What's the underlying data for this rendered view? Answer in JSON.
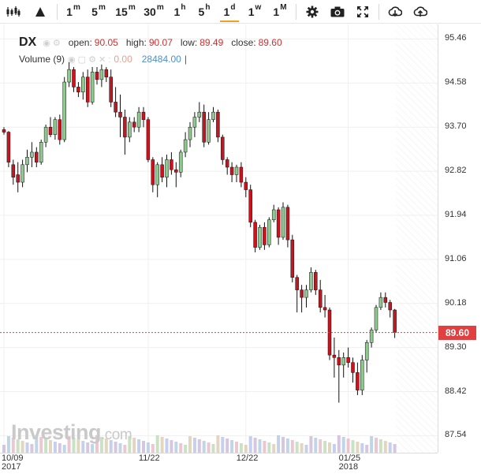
{
  "toolbar": {
    "intervals": [
      {
        "main": "1",
        "sup": "m"
      },
      {
        "main": "5",
        "sup": "m"
      },
      {
        "main": "15",
        "sup": "m"
      },
      {
        "main": "30",
        "sup": "m"
      },
      {
        "main": "1",
        "sup": "h"
      },
      {
        "main": "5",
        "sup": "h"
      },
      {
        "main": "1",
        "sup": "d"
      },
      {
        "main": "1",
        "sup": "w"
      },
      {
        "main": "1",
        "sup": "M"
      }
    ],
    "active_interval": "1d",
    "icons": [
      "candlestick-type-icon",
      "drawing-tools-icon",
      "gear-icon",
      "camera-icon",
      "fullscreen-icon",
      "download-icon",
      "upload-icon"
    ]
  },
  "legend": {
    "symbol": "DX",
    "open_label": "open:",
    "open": "90.05",
    "high_label": "high:",
    "high": "90.07",
    "low_label": "low:",
    "low": "89.49",
    "close_label": "close:",
    "close": "89.60",
    "volume_label": "Volume (9)",
    "volume_value": "0.00",
    "volume_ma": "28484.00",
    "volume_sep": "|"
  },
  "watermark": {
    "brand": "Investing",
    "suffix": ".com"
  },
  "price_tag": "89.60",
  "colors": {
    "up": "#8fc98f",
    "down": "#c8141e",
    "price_line": "#e04040",
    "vol_area": "#6baed6"
  },
  "chart_data": {
    "type": "candlestick",
    "symbol": "DX",
    "interval": "1d",
    "ylim": [
      87.2,
      95.75
    ],
    "y_ticks": [
      95.46,
      94.58,
      93.7,
      92.82,
      91.94,
      91.06,
      90.18,
      89.3,
      88.42,
      87.54
    ],
    "x_ticks": [
      {
        "label": "10/09",
        "sub": "2017",
        "index": 0
      },
      {
        "label": "11/22",
        "sub": "",
        "index": 31
      },
      {
        "label": "12/22",
        "sub": "",
        "index": 52
      },
      {
        "label": "01/25",
        "sub": "2018",
        "index": 74
      }
    ],
    "last_price": 89.6,
    "ohlc": [
      [
        93.65,
        93.7,
        93.55,
        93.6
      ],
      [
        93.6,
        93.62,
        92.9,
        93.0
      ],
      [
        92.95,
        93.05,
        92.55,
        92.7
      ],
      [
        92.75,
        93.0,
        92.4,
        92.6
      ],
      [
        92.6,
        93.05,
        92.5,
        92.95
      ],
      [
        92.95,
        93.25,
        92.8,
        93.1
      ],
      [
        93.1,
        93.4,
        92.9,
        93.2
      ],
      [
        93.2,
        93.3,
        92.9,
        93.0
      ],
      [
        93.0,
        93.45,
        92.95,
        93.4
      ],
      [
        93.4,
        93.75,
        93.3,
        93.7
      ],
      [
        93.7,
        93.9,
        93.5,
        93.55
      ],
      [
        93.55,
        93.9,
        93.45,
        93.85
      ],
      [
        93.85,
        93.95,
        93.35,
        93.45
      ],
      [
        93.45,
        94.7,
        93.4,
        94.6
      ],
      [
        94.6,
        95.0,
        94.5,
        94.85
      ],
      [
        94.85,
        94.9,
        94.4,
        94.5
      ],
      [
        94.5,
        94.6,
        94.3,
        94.4
      ],
      [
        94.4,
        94.8,
        94.25,
        94.7
      ],
      [
        94.7,
        94.85,
        94.1,
        94.2
      ],
      [
        94.2,
        94.9,
        94.15,
        94.8
      ],
      [
        94.8,
        94.9,
        94.55,
        94.65
      ],
      [
        94.65,
        94.95,
        94.5,
        94.85
      ],
      [
        94.85,
        94.9,
        94.6,
        94.7
      ],
      [
        94.7,
        94.85,
        94.1,
        94.2
      ],
      [
        94.2,
        94.5,
        93.9,
        94.0
      ],
      [
        94.0,
        94.35,
        93.5,
        93.9
      ],
      [
        93.9,
        94.05,
        93.15,
        93.5
      ],
      [
        93.5,
        93.9,
        93.4,
        93.8
      ],
      [
        93.8,
        93.9,
        93.6,
        93.7
      ],
      [
        93.7,
        94.1,
        93.6,
        94.0
      ],
      [
        94.0,
        94.1,
        93.7,
        93.85
      ],
      [
        93.85,
        93.9,
        93.0,
        93.05
      ],
      [
        93.05,
        93.1,
        92.4,
        92.55
      ],
      [
        92.55,
        93.0,
        92.3,
        92.95
      ],
      [
        92.95,
        93.1,
        92.6,
        92.7
      ],
      [
        92.7,
        93.15,
        92.5,
        93.05
      ],
      [
        93.05,
        93.2,
        92.75,
        92.85
      ],
      [
        92.85,
        93.0,
        92.5,
        92.8
      ],
      [
        92.8,
        93.25,
        92.7,
        93.2
      ],
      [
        93.2,
        93.6,
        93.1,
        93.45
      ],
      [
        93.45,
        93.8,
        93.3,
        93.7
      ],
      [
        93.7,
        94.0,
        93.5,
        93.9
      ],
      [
        93.9,
        94.2,
        93.8,
        94.0
      ],
      [
        94.0,
        94.15,
        93.3,
        93.4
      ],
      [
        93.4,
        94.0,
        93.35,
        93.85
      ],
      [
        93.85,
        94.1,
        93.8,
        94.0
      ],
      [
        94.0,
        94.05,
        93.4,
        93.5
      ],
      [
        93.5,
        93.55,
        92.95,
        93.05
      ],
      [
        93.05,
        93.1,
        92.75,
        92.9
      ],
      [
        92.9,
        93.0,
        92.6,
        92.75
      ],
      [
        92.75,
        92.95,
        92.6,
        92.9
      ],
      [
        92.9,
        93.0,
        92.5,
        92.6
      ],
      [
        92.6,
        92.7,
        92.3,
        92.45
      ],
      [
        92.45,
        92.55,
        91.7,
        91.8
      ],
      [
        91.8,
        91.85,
        91.2,
        91.3
      ],
      [
        91.3,
        91.75,
        91.25,
        91.7
      ],
      [
        91.7,
        91.8,
        91.25,
        91.35
      ],
      [
        91.35,
        91.9,
        91.3,
        91.85
      ],
      [
        91.85,
        92.15,
        91.8,
        92.05
      ],
      [
        92.05,
        92.1,
        91.35,
        91.5
      ],
      [
        91.5,
        92.2,
        91.45,
        92.1
      ],
      [
        92.1,
        92.15,
        91.3,
        91.45
      ],
      [
        91.45,
        91.55,
        90.6,
        90.7
      ],
      [
        90.7,
        90.75,
        90.0,
        90.45
      ],
      [
        90.45,
        90.55,
        90.0,
        90.3
      ],
      [
        90.3,
        90.55,
        90.1,
        90.45
      ],
      [
        90.45,
        90.9,
        90.4,
        90.8
      ],
      [
        90.8,
        90.85,
        90.35,
        90.45
      ],
      [
        90.45,
        90.65,
        90.0,
        90.1
      ],
      [
        90.1,
        90.35,
        89.9,
        90.05
      ],
      [
        90.05,
        90.1,
        89.05,
        89.15
      ],
      [
        89.15,
        89.5,
        88.7,
        89.1
      ],
      [
        89.1,
        89.25,
        88.2,
        88.95
      ],
      [
        88.95,
        89.2,
        88.7,
        89.1
      ],
      [
        89.1,
        89.3,
        88.9,
        89.0
      ],
      [
        89.0,
        89.1,
        88.6,
        88.8
      ],
      [
        88.8,
        89.0,
        88.35,
        88.45
      ],
      [
        88.45,
        89.15,
        88.35,
        89.05
      ],
      [
        89.05,
        89.45,
        88.8,
        89.4
      ],
      [
        89.4,
        89.7,
        89.3,
        89.65
      ],
      [
        89.65,
        90.15,
        89.6,
        90.1
      ],
      [
        90.1,
        90.4,
        90.05,
        90.3
      ],
      [
        90.3,
        90.4,
        90.1,
        90.2
      ],
      [
        90.2,
        90.25,
        89.9,
        90.05
      ],
      [
        90.05,
        90.07,
        89.49,
        89.6
      ]
    ],
    "volume": [
      0,
      0,
      0,
      0,
      0,
      0,
      0,
      0,
      0,
      0,
      0,
      0,
      0,
      0,
      0,
      0,
      0,
      0,
      0,
      0,
      0,
      0,
      0,
      0,
      0,
      0,
      0,
      0,
      0,
      0,
      0,
      0,
      0,
      0,
      0,
      0,
      0,
      0,
      0,
      0,
      0,
      0,
      0,
      0,
      0,
      0,
      0,
      0,
      0,
      0,
      0,
      0,
      0,
      0,
      0,
      0,
      0,
      0,
      0,
      0,
      0,
      0,
      0,
      0,
      0,
      0,
      0,
      0,
      0,
      0,
      0,
      0,
      0,
      0,
      0,
      0,
      0,
      0,
      0,
      0,
      0,
      0,
      0,
      0,
      0
    ]
  }
}
